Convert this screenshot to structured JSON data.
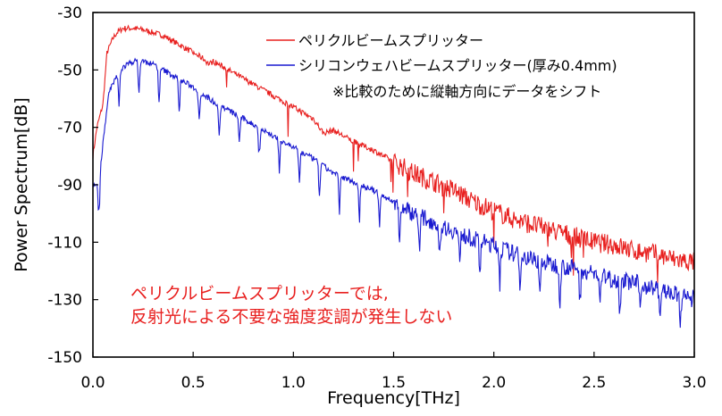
{
  "chart_data": {
    "type": "line",
    "xlabel": "Frequency[THz]",
    "ylabel": "Power Spectrum[dB]",
    "xlim": [
      0.0,
      3.0
    ],
    "ylim": [
      -150,
      -30
    ],
    "x_ticks": [
      "0.0",
      "0.5",
      "1.0",
      "1.5",
      "2.0",
      "2.5",
      "3.0"
    ],
    "y_ticks": [
      "-30",
      "-50",
      "-70",
      "-90",
      "-110",
      "-130",
      "-150"
    ],
    "grid": false,
    "legend_position": "top-right",
    "colors": {
      "pellicle": "#e8201f",
      "silicon": "#1a1ad0",
      "annotation": "#e8201f"
    },
    "series": [
      {
        "name": "ペリクルビームスプリッター",
        "color": "#e8201f",
        "x": [
          0.0,
          0.02,
          0.05,
          0.07,
          0.1,
          0.12,
          0.15,
          0.2,
          0.25,
          0.3,
          0.35,
          0.4,
          0.45,
          0.5,
          0.55,
          0.58,
          0.6,
          0.7,
          0.8,
          0.9,
          1.0,
          1.1,
          1.15,
          1.2,
          1.3,
          1.4,
          1.5,
          1.6,
          1.7,
          1.8,
          1.9,
          2.0,
          2.1,
          2.2,
          2.3,
          2.4,
          2.5,
          2.6,
          2.7,
          2.8,
          2.9,
          3.0
        ],
        "y": [
          -80,
          -70,
          -62,
          -44,
          -39,
          -37,
          -35.5,
          -35.5,
          -36,
          -37,
          -38,
          -40,
          -42,
          -44,
          -46,
          -48,
          -47,
          -51,
          -55,
          -59,
          -63,
          -67,
          -72,
          -71,
          -75,
          -78,
          -82,
          -86,
          -89,
          -92,
          -96,
          -99,
          -102,
          -104,
          -106,
          -108,
          -110,
          -111,
          -113,
          -114,
          -116,
          -117
        ]
      },
      {
        "name": "シリコンウェハビームスプリッター(厚み0.4mm)",
        "color": "#1a1ad0",
        "x": [
          0.0,
          0.03,
          0.05,
          0.08,
          0.12,
          0.15,
          0.2,
          0.25,
          0.3,
          0.35,
          0.4,
          0.5,
          0.6,
          0.7,
          0.8,
          0.9,
          1.0,
          1.1,
          1.2,
          1.3,
          1.4,
          1.5,
          1.6,
          1.7,
          1.8,
          1.9,
          2.0,
          2.1,
          2.2,
          2.3,
          2.4,
          2.5,
          2.6,
          2.7,
          2.8,
          2.9,
          3.0
        ],
        "y": [
          -90,
          -90,
          -75,
          -58,
          -52,
          -49,
          -47,
          -47,
          -48,
          -50,
          -52,
          -56,
          -61,
          -65,
          -69,
          -73,
          -77,
          -81,
          -86,
          -89,
          -92,
          -96,
          -100,
          -103,
          -106,
          -109,
          -111,
          -114,
          -116,
          -118,
          -119,
          -121,
          -123,
          -124,
          -126,
          -128,
          -130
        ]
      }
    ],
    "legend": [
      "ペリクルビームスプリッター",
      "シリコンウェハビームスプリッター(厚み0.4mm)"
    ],
    "note": "※比較のために縦軸方向にデータをシフト",
    "annotation": [
      "ペリクルビームスプリッターでは,",
      "反射光による不要な強度変調が発生しない"
    ]
  }
}
